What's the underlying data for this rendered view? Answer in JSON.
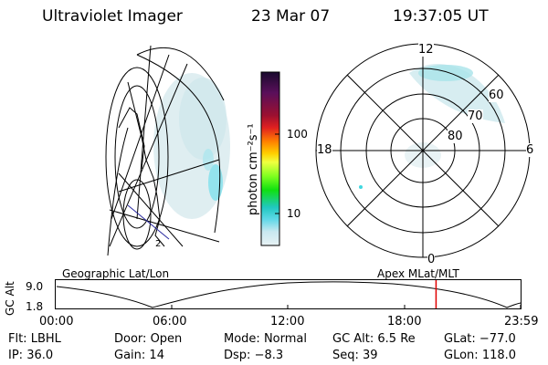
{
  "header": {
    "instrument": "Ultraviolet Imager",
    "date": "23 Mar 07",
    "time": "19:37:05 UT"
  },
  "left_panel": {
    "label": "Geographic Lat/Lon"
  },
  "right_panel": {
    "label": "Apex MLat/MLT",
    "mlt_labels": [
      "12",
      "18",
      "6",
      "0"
    ],
    "lat_labels": [
      "60",
      "70",
      "80"
    ]
  },
  "colorbar": {
    "unit": "photon cm⁻²s⁻¹",
    "ticks": [
      "100",
      "10"
    ],
    "colors": [
      "#1a0a2e",
      "#5a0f5a",
      "#9c1030",
      "#e02020",
      "#ff8000",
      "#ffd000",
      "#f0ff40",
      "#80ff20",
      "#10e010",
      "#20c8c0",
      "#60d8e8",
      "#c8e8f0",
      "#e8f2f4"
    ]
  },
  "altitude_plot": {
    "ylabel": "GC Alt",
    "y_ticks": [
      "9.0",
      "1.8"
    ],
    "x_ticks": [
      "00:00",
      "06:00",
      "12:00",
      "18:00",
      "23:59"
    ],
    "marker_time_hours": 19.62,
    "marker_color": "#e00000"
  },
  "status": {
    "row1": [
      {
        "label": "Flt:",
        "value": "LBHL"
      },
      {
        "label": "Door:",
        "value": "Open"
      },
      {
        "label": "Mode:",
        "value": "Normal"
      },
      {
        "label": "GC Alt:",
        "value": "6.5 Re"
      },
      {
        "label": "GLat:",
        "value": "−77.0"
      }
    ],
    "row2": [
      {
        "label": "IP:",
        "value": "36.0"
      },
      {
        "label": "Gain:",
        "value": "14"
      },
      {
        "label": "Dsp:",
        "value": "−8.3"
      },
      {
        "label": "Seq:",
        "value": "39"
      },
      {
        "label": "GLon:",
        "value": "118.0"
      }
    ]
  }
}
